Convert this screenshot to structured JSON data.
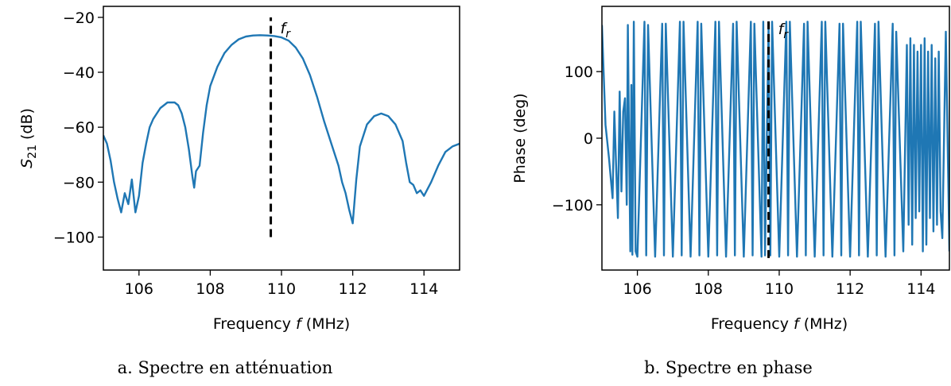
{
  "chart_data": [
    {
      "type": "line",
      "caption": "a. Spectre en atténuation",
      "xlabel": "Frequency",
      "xlabel_symbol": "f",
      "xlabel_unit": "(MHz)",
      "ylabel_symbol": "S",
      "ylabel_sub": "21",
      "ylabel_unit": "(dB)",
      "xlim": [
        105,
        115
      ],
      "ylim": [
        -112,
        -16
      ],
      "xticks": [
        106,
        108,
        110,
        112,
        114
      ],
      "yticks": [
        -20,
        -40,
        -60,
        -80,
        -100
      ],
      "xtick_labels": [
        "106",
        "108",
        "110",
        "112",
        "114"
      ],
      "ytick_labels": [
        "−20",
        "−40",
        "−60",
        "−80",
        "−100"
      ],
      "line_color": "#1f77b4",
      "marker": {
        "label_base": "f",
        "label_sub": "r",
        "x": 109.7,
        "y_from": -100,
        "y_to": -20
      },
      "series": [
        {
          "x": [
            105.0,
            105.1,
            105.2,
            105.3,
            105.4,
            105.5,
            105.6,
            105.7,
            105.8,
            105.9,
            106.0,
            106.1,
            106.2,
            106.3,
            106.4,
            106.5,
            106.6,
            106.7,
            106.8,
            106.9,
            107.0,
            107.1,
            107.2,
            107.3,
            107.4,
            107.5,
            107.55,
            107.6,
            107.7,
            107.8,
            107.9,
            108.0,
            108.2,
            108.4,
            108.6,
            108.8,
            109.0,
            109.2,
            109.4,
            109.6,
            109.8,
            110.0,
            110.2,
            110.4,
            110.6,
            110.8,
            111.0,
            111.2,
            111.4,
            111.6,
            111.7,
            111.8,
            111.9,
            112.0,
            112.1,
            112.2,
            112.4,
            112.6,
            112.8,
            113.0,
            113.2,
            113.4,
            113.5,
            113.6,
            113.7,
            113.8,
            113.9,
            114.0,
            114.2,
            114.4,
            114.6,
            114.8,
            115.0
          ],
          "y": [
            -63,
            -66,
            -72,
            -80,
            -86,
            -91,
            -84,
            -88,
            -79,
            -91,
            -85,
            -73,
            -66,
            -60,
            -57,
            -55,
            -53,
            -52,
            -51,
            -51,
            -51,
            -52,
            -55,
            -60,
            -68,
            -78,
            -82,
            -76,
            -74,
            -62,
            -52,
            -45,
            -38,
            -33,
            -30,
            -28,
            -27,
            -26.6,
            -26.5,
            -26.6,
            -26.8,
            -27.3,
            -28.5,
            -31,
            -35,
            -41,
            -49,
            -58,
            -66,
            -74,
            -80,
            -84,
            -90,
            -95,
            -79,
            -67,
            -59,
            -56,
            -55,
            -56,
            -59,
            -65,
            -73,
            -80,
            -81,
            -84,
            -83,
            -85,
            -80,
            -74,
            -69,
            -67,
            -66
          ]
        }
      ]
    },
    {
      "type": "line",
      "caption": "b. Spectre en phase",
      "xlabel": "Frequency",
      "xlabel_symbol": "f",
      "xlabel_unit": "(MHz)",
      "ylabel": "Phase (deg)",
      "xlim": [
        105,
        114.8
      ],
      "ylim": [
        -198,
        198
      ],
      "xticks": [
        106,
        108,
        110,
        112,
        114
      ],
      "yticks": [
        100,
        0,
        -100
      ],
      "xtick_labels": [
        "106",
        "108",
        "110",
        "112",
        "114"
      ],
      "ytick_labels": [
        "100",
        "0",
        "−100"
      ],
      "line_color": "#1f77b4",
      "marker": {
        "label_base": "f",
        "label_sub": "r",
        "x": 109.7,
        "y_from": -180,
        "y_to": 180
      },
      "series": [
        {
          "x": [
            105.0,
            105.1,
            105.2,
            105.25,
            105.3,
            105.35,
            105.4,
            105.45,
            105.5,
            105.55,
            105.6,
            105.65,
            105.7,
            105.73,
            105.76,
            105.8,
            105.83,
            105.86,
            105.9,
            105.95,
            106.0,
            106.2,
            106.25,
            106.3,
            106.5,
            106.7,
            106.75,
            106.8,
            107.0,
            107.2,
            107.25,
            107.3,
            107.5,
            107.7,
            107.75,
            107.8,
            108.0,
            108.2,
            108.25,
            108.3,
            108.5,
            108.7,
            108.75,
            108.8,
            109.0,
            109.2,
            109.25,
            109.3,
            109.5,
            109.55,
            109.6,
            109.7,
            109.75,
            109.8,
            110.0,
            110.2,
            110.25,
            110.3,
            110.5,
            110.7,
            110.75,
            110.8,
            111.0,
            111.2,
            111.25,
            111.3,
            111.5,
            111.7,
            111.75,
            111.8,
            112.0,
            112.2,
            112.25,
            112.3,
            112.5,
            112.7,
            112.75,
            112.8,
            113.0,
            113.2,
            113.25,
            113.3,
            113.5,
            113.6,
            113.65,
            113.7,
            113.75,
            113.8,
            113.85,
            113.9,
            113.95,
            114.0,
            114.05,
            114.1,
            114.15,
            114.2,
            114.25,
            114.3,
            114.35,
            114.4,
            114.45,
            114.5,
            114.55,
            114.6,
            114.7,
            114.8
          ],
          "y": [
            170,
            20,
            -30,
            -60,
            -90,
            40,
            -40,
            -120,
            70,
            -80,
            40,
            60,
            -100,
            170,
            20,
            -170,
            80,
            -175,
            175,
            -170,
            -178,
            175,
            -176,
            170,
            -178,
            172,
            -176,
            172,
            -178,
            175,
            -176,
            175,
            -178,
            175,
            -176,
            172,
            -178,
            175,
            -176,
            175,
            -178,
            172,
            -176,
            175,
            -178,
            175,
            -176,
            172,
            -178,
            175,
            -176,
            172,
            -176,
            175,
            -178,
            175,
            -176,
            175,
            -178,
            172,
            -176,
            175,
            -178,
            175,
            -176,
            175,
            -178,
            172,
            -176,
            172,
            -178,
            175,
            -176,
            175,
            -178,
            172,
            -176,
            175,
            -178,
            172,
            -176,
            160,
            -170,
            140,
            -130,
            150,
            -160,
            140,
            -120,
            130,
            -110,
            140,
            -170,
            150,
            -160,
            130,
            -120,
            140,
            -140,
            120,
            -130,
            130,
            -110,
            -150,
            160,
            -170
          ]
        }
      ]
    }
  ]
}
